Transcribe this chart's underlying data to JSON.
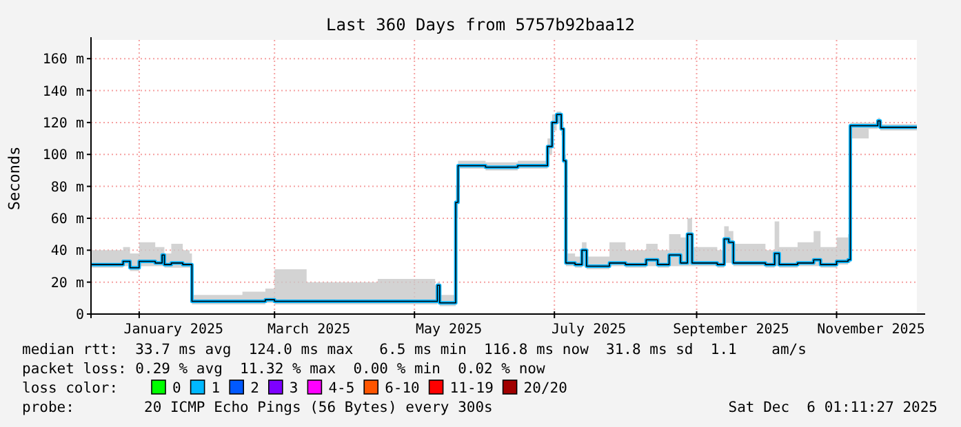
{
  "chart_data": {
    "type": "line",
    "title": "Last 360 Days from 5757b92baa12",
    "ylabel": "Seconds",
    "x": [
      "2024-12-11",
      "2024-12-20",
      "2024-12-25",
      "2024-12-28",
      "2025-01-01",
      "2025-01-08",
      "2025-01-11",
      "2025-01-12",
      "2025-01-15",
      "2025-01-20",
      "2025-01-23",
      "2025-01-24",
      "2025-02-01",
      "2025-02-15",
      "2025-02-25",
      "2025-03-01",
      "2025-03-15",
      "2025-04-01",
      "2025-04-15",
      "2025-05-01",
      "2025-05-10",
      "2025-05-11",
      "2025-05-12",
      "2025-05-18",
      "2025-05-19",
      "2025-05-20",
      "2025-06-01",
      "2025-06-15",
      "2025-06-27",
      "2025-06-28",
      "2025-06-30",
      "2025-07-02",
      "2025-07-04",
      "2025-07-05",
      "2025-07-06",
      "2025-07-10",
      "2025-07-13",
      "2025-07-15",
      "2025-07-25",
      "2025-08-01",
      "2025-08-10",
      "2025-08-15",
      "2025-08-20",
      "2025-08-25",
      "2025-08-28",
      "2025-08-30",
      "2025-09-10",
      "2025-09-13",
      "2025-09-15",
      "2025-09-17",
      "2025-10-01",
      "2025-10-05",
      "2025-10-07",
      "2025-10-15",
      "2025-10-22",
      "2025-10-25",
      "2025-11-01",
      "2025-11-06",
      "2025-11-07",
      "2025-11-15",
      "2025-11-19",
      "2025-11-20",
      "2025-12-06"
    ],
    "series": [
      {
        "color": "#00b4ff",
        "values": [
          31,
          31,
          33,
          29,
          33,
          32,
          37,
          31,
          32,
          31,
          31,
          8,
          8,
          8,
          9,
          8,
          8,
          8,
          8,
          8,
          8,
          18,
          7,
          7,
          70,
          93,
          92,
          93,
          93,
          105,
          120,
          125,
          116,
          96,
          32,
          31,
          40,
          30,
          32,
          31,
          34,
          31,
          37,
          32,
          50,
          32,
          31,
          47,
          45,
          32,
          31,
          38,
          31,
          32,
          34,
          31,
          33,
          34,
          118,
          118,
          121,
          117,
          117
        ],
        "lower": [
          29,
          29,
          30,
          27,
          30,
          30,
          30,
          29,
          29,
          29,
          29,
          6,
          6,
          6,
          7,
          6,
          6,
          6,
          6,
          6,
          6,
          7,
          5,
          5,
          60,
          91,
          90,
          91,
          91,
          100,
          115,
          120,
          112,
          94,
          30,
          29,
          30,
          28,
          30,
          29,
          30,
          29,
          30,
          30,
          30,
          30,
          29,
          32,
          32,
          30,
          29,
          30,
          29,
          30,
          30,
          29,
          31,
          32,
          110,
          116,
          117,
          115,
          115
        ],
        "upper": [
          40,
          40,
          42,
          38,
          45,
          42,
          42,
          38,
          44,
          40,
          38,
          12,
          12,
          14,
          16,
          28,
          20,
          20,
          22,
          22,
          18,
          20,
          12,
          12,
          80,
          96,
          95,
          96,
          96,
          110,
          125,
          127,
          120,
          100,
          38,
          36,
          45,
          36,
          45,
          40,
          44,
          40,
          50,
          48,
          60,
          42,
          40,
          55,
          52,
          44,
          40,
          58,
          42,
          45,
          52,
          42,
          48,
          50,
          120,
          120,
          123,
          119,
          119
        ]
      }
    ],
    "xlim": [
      "2024-12-11",
      "2025-12-06"
    ],
    "xticks": [
      {
        "value": "2025-01-01",
        "label": null
      },
      {
        "value": "2025-01-16",
        "label": "January 2025"
      },
      {
        "value": "2025-03-01",
        "label": null
      },
      {
        "value": "2025-03-16",
        "label": "March 2025"
      },
      {
        "value": "2025-05-01",
        "label": null
      },
      {
        "value": "2025-05-16",
        "label": "May 2025"
      },
      {
        "value": "2025-07-01",
        "label": null
      },
      {
        "value": "2025-07-16",
        "label": "July 2025"
      },
      {
        "value": "2025-09-01",
        "label": null
      },
      {
        "value": "2025-09-16",
        "label": "September 2025"
      },
      {
        "value": "2025-11-01",
        "label": null
      },
      {
        "value": "2025-11-16",
        "label": "November 2025"
      }
    ],
    "ylim": [
      0,
      170
    ],
    "yticks": [
      0,
      {
        "value": 20,
        "label": "20 m"
      },
      {
        "value": 40,
        "label": "40 m"
      },
      {
        "value": 60,
        "label": "60 m"
      },
      {
        "value": 80,
        "label": "80 m"
      },
      {
        "value": 100,
        "label": "100 m"
      },
      {
        "value": 120,
        "label": "120 m"
      },
      {
        "value": 140,
        "label": "140 m"
      },
      {
        "value": 160,
        "label": "160 m"
      }
    ],
    "grid": true,
    "annotations": [
      "median rtt:  33.7 ms avg  124.0 ms max   6.5 ms min  116.8 ms now  31.8 ms sd  1.1    am/s",
      "packet loss: 0.29 % avg  11.32 % max  0.00 % min  0.02 % now",
      "loss color: 0 1 2 3 4-5 6-10 11-19 20/20",
      "probe:        20 ICMP Echo Pings (56 Bytes) every 300s",
      "Sat Dec  6 01:11:27 2025"
    ]
  }
}
